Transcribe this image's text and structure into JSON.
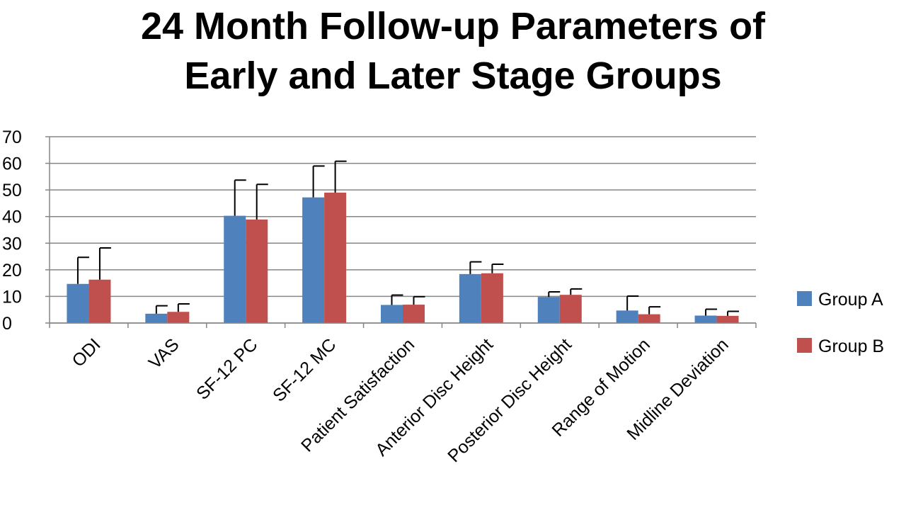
{
  "chart_data": {
    "type": "bar",
    "title_line1": "24 Month Follow-up Parameters of",
    "title_line2": "Early and Later Stage Groups",
    "categories": [
      "ODI",
      "VAS",
      "SF-12 PC",
      "SF-12 MC",
      "Patient Satisfaction",
      "Anterior Disc Height",
      "Posterior Disc Height",
      "Range of Motion",
      "Midline Deviation"
    ],
    "series": [
      {
        "name": "Group A",
        "color": "#4F81BD",
        "values": [
          14.7,
          3.5,
          40.3,
          47.2,
          6.8,
          18.4,
          9.8,
          4.7,
          2.8
        ],
        "error": [
          10,
          3,
          13.4,
          11.8,
          3.7,
          4.6,
          1.9,
          5.4,
          2.4
        ]
      },
      {
        "name": "Group B",
        "color": "#C0504D",
        "values": [
          16.3,
          4.2,
          38.9,
          49.0,
          6.9,
          18.7,
          10.6,
          3.3,
          2.7
        ],
        "error": [
          11.9,
          3,
          13.2,
          11.8,
          3.0,
          3.4,
          2.2,
          2.8,
          1.7
        ]
      }
    ],
    "ylim": [
      0,
      70
    ],
    "yticks": [
      0,
      10,
      20,
      30,
      40,
      50,
      60,
      70
    ],
    "grid": true,
    "legend_position": "right"
  }
}
